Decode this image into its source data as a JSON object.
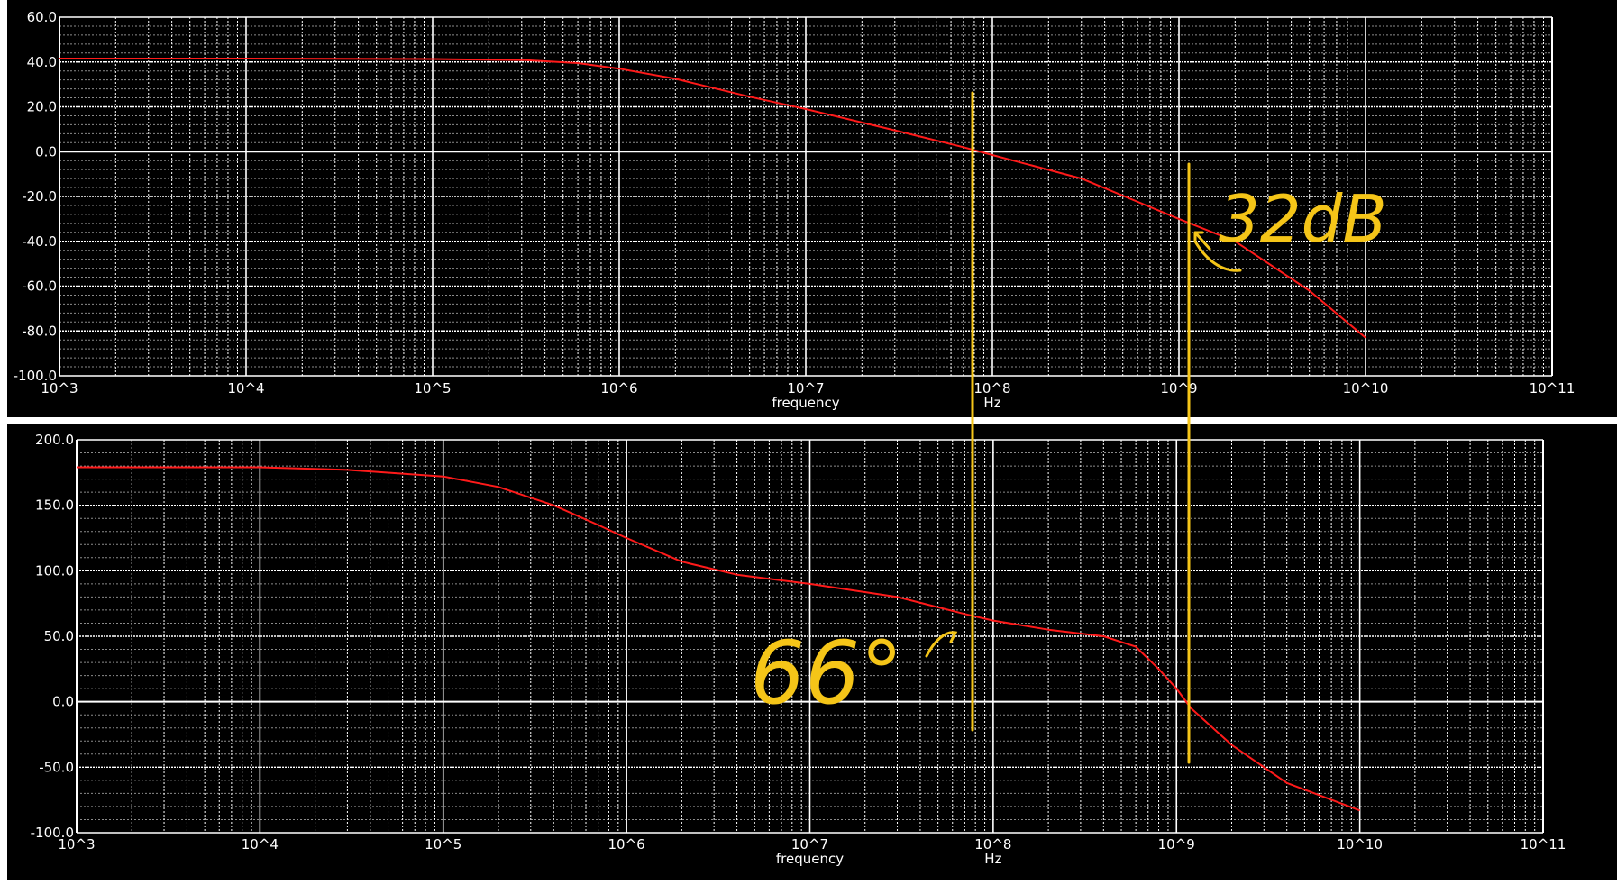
{
  "colors": {
    "background": "#000000",
    "separator": "#ffffff",
    "grid_major": "#ffffff",
    "grid_minor": "#ffffff",
    "text": "#ffffff",
    "trace": "#ff1a1a",
    "annotation": "#f5c518"
  },
  "annotations": {
    "gain_margin_label": "32dB",
    "phase_margin_label": "66°"
  },
  "chart_data": [
    {
      "type": "line",
      "xscale": "log",
      "xlim": [
        1000,
        100000000000
      ],
      "ylim": [
        -100,
        60
      ],
      "x_tick_labels": [
        "10^3",
        "10^4",
        "10^5",
        "10^6",
        "10^7",
        "10^8",
        "10^9",
        "10^10",
        "10^11"
      ],
      "y_tick_labels": [
        "60.0",
        "40.0",
        "20.0",
        "0.0",
        "-20.0",
        "-40.0",
        "-60.0",
        "-80.0",
        "-100.0"
      ],
      "y_ticks": [
        60,
        40,
        20,
        0,
        -20,
        -40,
        -60,
        -80,
        -100
      ],
      "xlabel": "frequency",
      "xunit": "Hz",
      "grid": true,
      "series": [
        {
          "x": [
            1000,
            10000,
            100000,
            316000,
            600000,
            1000000,
            2000000,
            5000000,
            10000000,
            30000000,
            70000000,
            100000000,
            300000000,
            1000000000,
            2000000000,
            5000000000,
            10000000000
          ],
          "y": [
            41.5,
            41.5,
            41.3,
            40.8,
            39.5,
            37.0,
            32.5,
            24.5,
            19.0,
            9.5,
            2.0,
            -1.5,
            -12.0,
            -30.0,
            -40.0,
            -62.0,
            -83.0
          ]
        }
      ]
    },
    {
      "type": "line",
      "xscale": "log",
      "xlim": [
        1000,
        100000000000
      ],
      "ylim": [
        -100,
        200
      ],
      "x_tick_labels": [
        "10^3",
        "10^4",
        "10^5",
        "10^6",
        "10^7",
        "10^8",
        "10^9",
        "10^10",
        "10^11"
      ],
      "y_tick_labels": [
        "200.0",
        "150.0",
        "100.0",
        "50.0",
        "0.0",
        "-50.0",
        "-100.0"
      ],
      "y_ticks": [
        200,
        150,
        100,
        50,
        0,
        -50,
        -100
      ],
      "xlabel": "frequency",
      "xunit": "Hz",
      "grid": true,
      "series": [
        {
          "x": [
            1000,
            10000,
            30000,
            100000,
            200000,
            400000,
            700000,
            1000000,
            2000000,
            4000000,
            10000000,
            30000000,
            70000000,
            100000000,
            200000000,
            400000000,
            600000000,
            800000000,
            1000000000,
            1200000000,
            2000000000,
            4000000000,
            10000000000
          ],
          "y": [
            179,
            179,
            177,
            172,
            164,
            150,
            135,
            125,
            107,
            97,
            90,
            80,
            67,
            62,
            55,
            50,
            42,
            25,
            10,
            -5,
            -33,
            -62,
            -83
          ]
        }
      ]
    }
  ]
}
